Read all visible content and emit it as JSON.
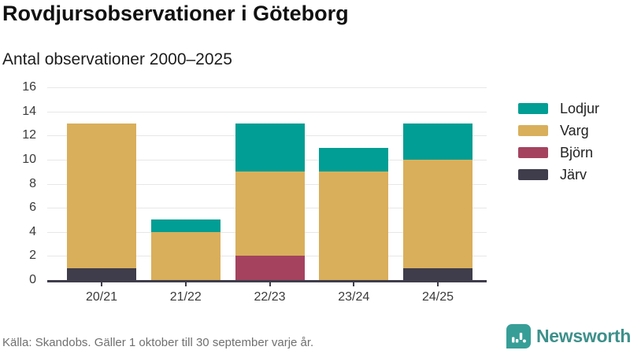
{
  "header": {
    "title": "Rovdjursobservationer i Göteborg",
    "subtitle": "Antal observationer 2000–2025"
  },
  "chart_data": {
    "type": "bar",
    "stacked": true,
    "title": "Rovdjursobservationer i Göteborg",
    "subtitle": "Antal observationer 2000–2025",
    "categories": [
      "20/21",
      "21/22",
      "22/23",
      "23/24",
      "24/25"
    ],
    "series": [
      {
        "name": "Järv",
        "color": "#3f3d4b",
        "values": [
          1,
          0,
          0,
          0,
          1
        ]
      },
      {
        "name": "Björn",
        "color": "#a5435f",
        "values": [
          0,
          0,
          2,
          0,
          0
        ]
      },
      {
        "name": "Varg",
        "color": "#d9af5b",
        "values": [
          12,
          4,
          7,
          9,
          9
        ]
      },
      {
        "name": "Lodjur",
        "color": "#009e94",
        "values": [
          0,
          1,
          4,
          2,
          3
        ]
      }
    ],
    "stack_order": "bottom-to-top",
    "totals": [
      13,
      5,
      13,
      11,
      13
    ],
    "xlabel": "",
    "ylabel": "",
    "ylim": [
      0,
      16
    ],
    "yticks": [
      0,
      2,
      4,
      6,
      8,
      10,
      12,
      14,
      16
    ],
    "grid": true,
    "legend_position": "right"
  },
  "legend": {
    "items": [
      {
        "label": "Lodjur",
        "color": "#009e94"
      },
      {
        "label": "Varg",
        "color": "#d9af5b"
      },
      {
        "label": "Björn",
        "color": "#a5435f"
      },
      {
        "label": "Järv",
        "color": "#3f3d4b"
      }
    ]
  },
  "footer": {
    "source": "Källa: Skandobs. Gäller 1 oktober till 30 september varje år.",
    "brand": "Newsworthy"
  },
  "colors": {
    "grid": "#e7e7e7",
    "axis": "#3f3d4b",
    "brand_teal": "#3d908b",
    "badge_teal": "#379e97"
  }
}
